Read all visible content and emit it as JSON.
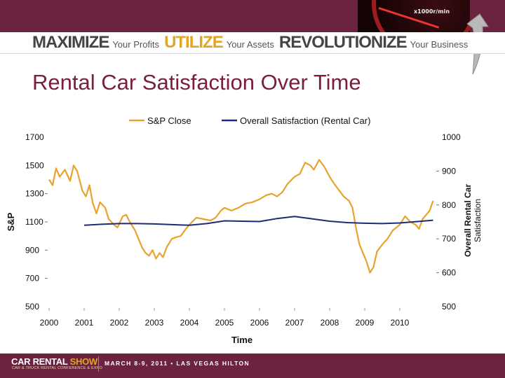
{
  "header": {
    "tagline": [
      {
        "strong": "MAXIMIZE",
        "soft": "Your Profits"
      },
      {
        "strong": "UTILIZE",
        "soft": "Your Assets"
      },
      {
        "strong": "REVOLUTIONIZE",
        "soft": "Your Business"
      }
    ],
    "gauge_text": "x1000r/min"
  },
  "slide": {
    "title": "Rental Car Satisfaction Over Time"
  },
  "footer": {
    "logo": "CAR RENTAL",
    "logo_accent": "SHOW",
    "subtitle": "CAR & TRUCK RENTAL CONFERENCE & EXPO",
    "event": "MARCH 8-9, 2011 • LAS VEGAS HILTON"
  },
  "colors": {
    "brand": "#6b2340",
    "title": "#7a1e3c",
    "accent": "#e0a526",
    "sp_line": "#e8a22e",
    "satisfaction_line": "#1f2a78"
  },
  "chart_data": {
    "type": "line",
    "xlabel": "Time",
    "ylabel_left": "S&P",
    "ylabel_right_lines": [
      "Overall Rental Car",
      "Satisfaction"
    ],
    "x_ticks": [
      "2000",
      "2001",
      "2002",
      "2003",
      "2004",
      "2005",
      "2006",
      "2007",
      "2008",
      "2009",
      "2010"
    ],
    "xlim": [
      2000,
      2011
    ],
    "ylim_left": [
      500,
      1700
    ],
    "yticks_left": [
      500,
      700,
      900,
      1100,
      1300,
      1500,
      1700
    ],
    "ylim_right": [
      500,
      1000
    ],
    "yticks_right": [
      500,
      600,
      700,
      800,
      900,
      1000
    ],
    "legend_position": "top",
    "series": [
      {
        "name": "S&P Close",
        "axis": "left",
        "color": "#e8a22e",
        "x": [
          2000.0,
          2000.1,
          2000.2,
          2000.3,
          2000.45,
          2000.6,
          2000.7,
          2000.8,
          2000.95,
          2001.05,
          2001.15,
          2001.25,
          2001.35,
          2001.45,
          2001.6,
          2001.7,
          2001.85,
          2001.95,
          2002.1,
          2002.2,
          2002.3,
          2002.45,
          2002.55,
          2002.65,
          2002.75,
          2002.85,
          2002.95,
          2003.05,
          2003.15,
          2003.25,
          2003.35,
          2003.5,
          2003.6,
          2003.75,
          2003.9,
          2004.0,
          2004.2,
          2004.4,
          2004.6,
          2004.75,
          2004.9,
          2005.0,
          2005.2,
          2005.4,
          2005.6,
          2005.8,
          2006.0,
          2006.2,
          2006.35,
          2006.5,
          2006.65,
          2006.8,
          2007.0,
          2007.15,
          2007.3,
          2007.45,
          2007.55,
          2007.7,
          2007.85,
          2008.0,
          2008.1,
          2008.25,
          2008.4,
          2008.55,
          2008.65,
          2008.75,
          2008.85,
          2008.95,
          2009.05,
          2009.15,
          2009.25,
          2009.35,
          2009.5,
          2009.65,
          2009.8,
          2010.0,
          2010.15,
          2010.3,
          2010.45,
          2010.55,
          2010.65,
          2010.75,
          2010.85,
          2010.95
        ],
        "values": [
          1400,
          1360,
          1480,
          1420,
          1470,
          1390,
          1500,
          1460,
          1320,
          1280,
          1360,
          1230,
          1160,
          1240,
          1200,
          1120,
          1080,
          1060,
          1140,
          1150,
          1100,
          1040,
          980,
          920,
          880,
          860,
          900,
          840,
          880,
          850,
          920,
          980,
          990,
          1000,
          1050,
          1080,
          1130,
          1120,
          1110,
          1130,
          1180,
          1200,
          1180,
          1200,
          1230,
          1240,
          1260,
          1290,
          1300,
          1280,
          1310,
          1370,
          1420,
          1440,
          1520,
          1500,
          1470,
          1540,
          1490,
          1420,
          1380,
          1330,
          1280,
          1250,
          1200,
          1060,
          940,
          880,
          820,
          740,
          780,
          890,
          940,
          980,
          1040,
          1080,
          1140,
          1100,
          1080,
          1050,
          1120,
          1150,
          1180,
          1250
        ]
      },
      {
        "name": "Overall Satisfaction (Rental Car)",
        "axis": "right",
        "color": "#1f2a78",
        "x": [
          2001.0,
          2001.5,
          2002.0,
          2002.5,
          2003.0,
          2003.5,
          2004.0,
          2004.5,
          2005.0,
          2005.5,
          2006.0,
          2006.5,
          2007.0,
          2007.5,
          2008.0,
          2008.5,
          2009.0,
          2009.5,
          2010.0,
          2010.5,
          2010.95
        ],
        "values": [
          740,
          743,
          745,
          745,
          744,
          742,
          740,
          745,
          753,
          752,
          751,
          760,
          766,
          759,
          752,
          748,
          746,
          745,
          747,
          751,
          755
        ]
      }
    ]
  }
}
